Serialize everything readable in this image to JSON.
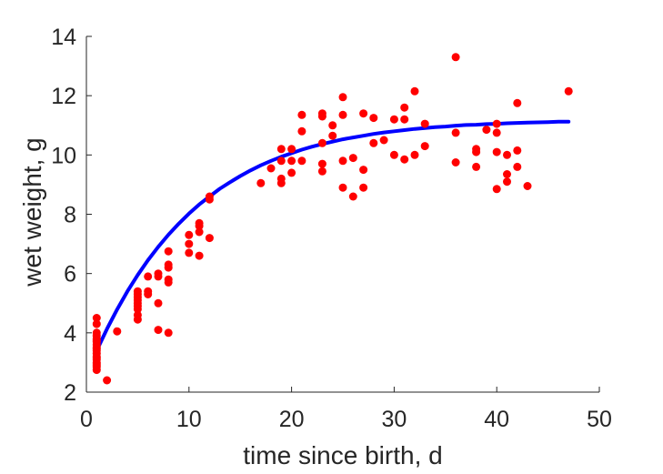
{
  "chart_data": {
    "type": "scatter",
    "xlabel": "time since birth, d",
    "ylabel": "wet weight, g",
    "xlim": [
      0,
      50
    ],
    "ylim": [
      2,
      14
    ],
    "xticks": [
      0,
      10,
      20,
      30,
      40,
      50
    ],
    "yticks": [
      2,
      4,
      6,
      8,
      10,
      12,
      14
    ],
    "grid": false,
    "colors": {
      "points": "#ff0000",
      "fit": "#0000ff",
      "axes": "#262626"
    },
    "series": [
      {
        "kind": "scatter",
        "x": [
          1,
          1,
          1,
          1,
          1,
          1,
          1,
          1,
          1,
          1,
          1,
          1,
          1,
          1,
          1,
          1,
          1,
          1,
          1,
          1,
          2,
          3,
          5,
          5,
          5,
          5,
          5,
          5,
          5,
          5,
          5,
          6,
          6,
          6,
          7,
          7,
          7,
          7,
          8,
          8,
          8,
          8,
          8,
          8,
          10,
          10,
          10,
          11,
          11,
          11,
          11,
          12,
          12,
          12,
          17,
          18,
          19,
          19,
          19,
          19,
          20,
          20,
          20,
          21,
          21,
          21,
          23,
          23,
          23,
          23,
          23,
          24,
          24,
          25,
          25,
          25,
          25,
          26,
          26,
          27,
          27,
          27,
          28,
          28,
          29,
          30,
          30,
          31,
          31,
          31,
          32,
          32,
          33,
          33,
          36,
          36,
          36,
          38,
          38,
          38,
          39,
          40,
          40,
          40,
          40,
          41,
          41,
          41,
          42,
          42,
          42,
          43,
          47
        ],
        "y": [
          4.5,
          4.3,
          4.0,
          3.9,
          3.8,
          3.75,
          3.7,
          3.6,
          3.5,
          3.45,
          3.4,
          3.3,
          3.2,
          3.15,
          3.1,
          3.0,
          2.95,
          2.9,
          2.85,
          2.75,
          2.4,
          4.05,
          5.4,
          5.3,
          5.2,
          5.1,
          5.0,
          4.9,
          4.8,
          4.6,
          4.45,
          5.9,
          5.4,
          5.3,
          6.0,
          5.9,
          5.0,
          4.1,
          6.75,
          6.3,
          6.2,
          5.8,
          5.7,
          4.0,
          7.3,
          7.0,
          6.7,
          7.7,
          7.6,
          7.4,
          6.6,
          8.6,
          8.5,
          7.2,
          9.05,
          9.55,
          10.2,
          9.8,
          9.2,
          9.05,
          10.2,
          9.8,
          9.4,
          11.35,
          10.8,
          9.8,
          11.4,
          11.3,
          10.4,
          9.7,
          9.45,
          10.65,
          11.0,
          11.95,
          11.35,
          9.8,
          8.9,
          9.9,
          8.6,
          11.4,
          9.5,
          8.9,
          11.25,
          10.4,
          10.5,
          11.2,
          10.0,
          11.6,
          11.2,
          9.85,
          12.15,
          10.0,
          11.05,
          10.3,
          13.3,
          10.75,
          9.75,
          10.2,
          10.1,
          9.6,
          10.85,
          11.05,
          10.75,
          10.1,
          8.85,
          10.0,
          9.35,
          9.1,
          11.75,
          10.15,
          9.6,
          8.95,
          12.15
        ]
      },
      {
        "kind": "line",
        "x": [
          1,
          2,
          3,
          4,
          5,
          6,
          7,
          8,
          9,
          10,
          11,
          12,
          13,
          14,
          15,
          16,
          17,
          18,
          19,
          20,
          21,
          22,
          23,
          24,
          25,
          26,
          27,
          28,
          29,
          30,
          31,
          32,
          33,
          34,
          35,
          36,
          37,
          38,
          39,
          40,
          41,
          42,
          43,
          44,
          45,
          46,
          47
        ],
        "y": [
          3.4,
          4.13,
          4.79,
          5.4,
          5.95,
          6.45,
          6.9,
          7.31,
          7.68,
          8.02,
          8.33,
          8.6,
          8.86,
          9.08,
          9.29,
          9.48,
          9.65,
          9.8,
          9.94,
          10.06,
          10.18,
          10.28,
          10.37,
          10.45,
          10.53,
          10.59,
          10.65,
          10.71,
          10.76,
          10.8,
          10.84,
          10.88,
          10.91,
          10.94,
          10.96,
          10.99,
          11.01,
          11.02,
          11.04,
          11.05,
          11.07,
          11.08,
          11.09,
          11.1,
          11.11,
          11.12,
          11.12
        ]
      }
    ]
  }
}
